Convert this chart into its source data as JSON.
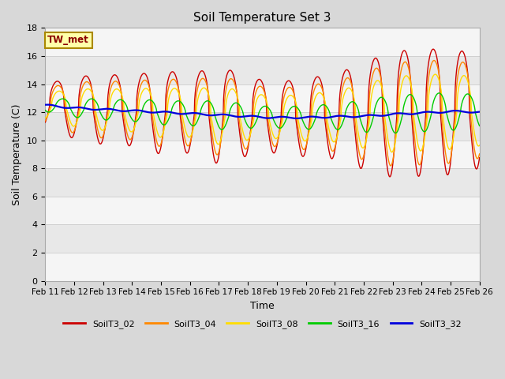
{
  "title": "Soil Temperature Set 3",
  "xlabel": "Time",
  "ylabel": "Soil Temperature (C)",
  "ylim": [
    0,
    18
  ],
  "yticks": [
    0,
    2,
    4,
    6,
    8,
    10,
    12,
    14,
    16,
    18
  ],
  "x_labels": [
    "Feb 11",
    "Feb 12",
    "Feb 13",
    "Feb 14",
    "Feb 15",
    "Feb 16",
    "Feb 17",
    "Feb 18",
    "Feb 19",
    "Feb 20",
    "Feb 21",
    "Feb 22",
    "Feb 23",
    "Feb 24",
    "Feb 25",
    "Feb 26"
  ],
  "annotation_text": "TW_met",
  "series_colors": {
    "SoilT3_02": "#cc0000",
    "SoilT3_04": "#ff8800",
    "SoilT3_08": "#ffdd00",
    "SoilT3_16": "#00cc00",
    "SoilT3_32": "#0000dd"
  },
  "legend_colors": [
    "#cc0000",
    "#ff8800",
    "#ffdd00",
    "#00cc00",
    "#0000dd"
  ],
  "legend_labels": [
    "SoilT3_02",
    "SoilT3_04",
    "SoilT3_08",
    "SoilT3_16",
    "SoilT3_32"
  ],
  "fig_bg": "#d8d8d8",
  "plot_bg": "#e8e8e8",
  "band_color": "#ffffff"
}
